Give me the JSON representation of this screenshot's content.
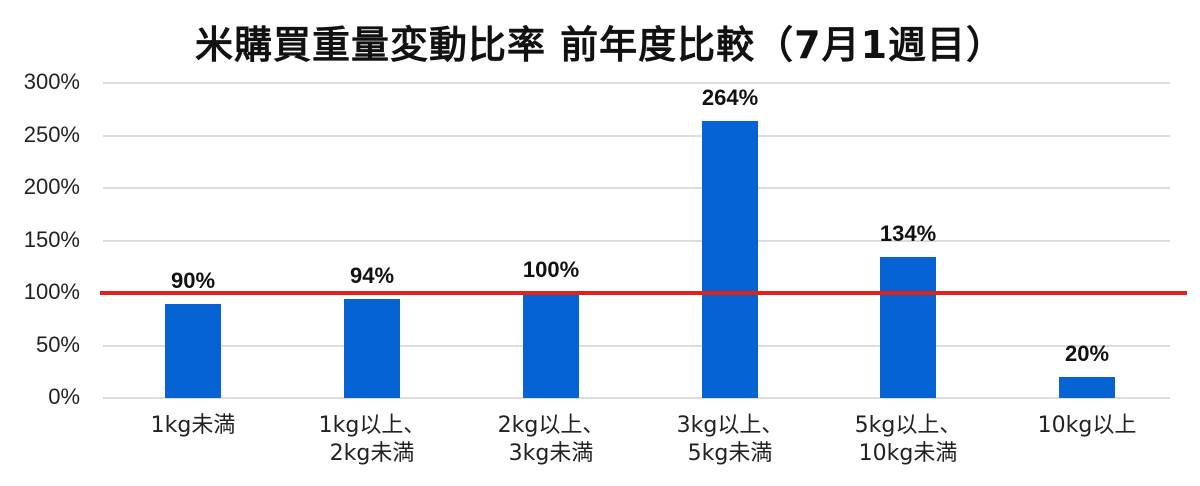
{
  "chart_data": {
    "type": "bar",
    "title": "米購買重量変動比率 前年度比較（7月1週目）",
    "xlabel": "",
    "ylabel": "",
    "categories": [
      "1kg未満",
      "1kg以上、2kg未満",
      "2kg以上、3kg未満",
      "3kg以上、5kg未満",
      "5kg以上、10kg未満",
      "10kg以上"
    ],
    "category_lines": [
      [
        "1kg未満"
      ],
      [
        "1kg以上、",
        "2kg未満"
      ],
      [
        "2kg以上、",
        "3kg未満"
      ],
      [
        "3kg以上、",
        "5kg未満"
      ],
      [
        "5kg以上、",
        "10kg未満"
      ],
      [
        "10kg以上"
      ]
    ],
    "values": [
      90,
      94,
      100,
      264,
      134,
      20
    ],
    "value_labels": [
      "90%",
      "94%",
      "100%",
      "264%",
      "134%",
      "20%"
    ],
    "ylim": [
      0,
      300
    ],
    "yticks": [
      0,
      50,
      100,
      150,
      200,
      250,
      300
    ],
    "ytick_labels": [
      "0%",
      "50%",
      "100%",
      "150%",
      "200%",
      "250%",
      "300%"
    ],
    "reference_line": {
      "value": 100,
      "color": "#e0221b"
    },
    "bar_color": "#0563d4",
    "grid": true,
    "legend": null
  }
}
